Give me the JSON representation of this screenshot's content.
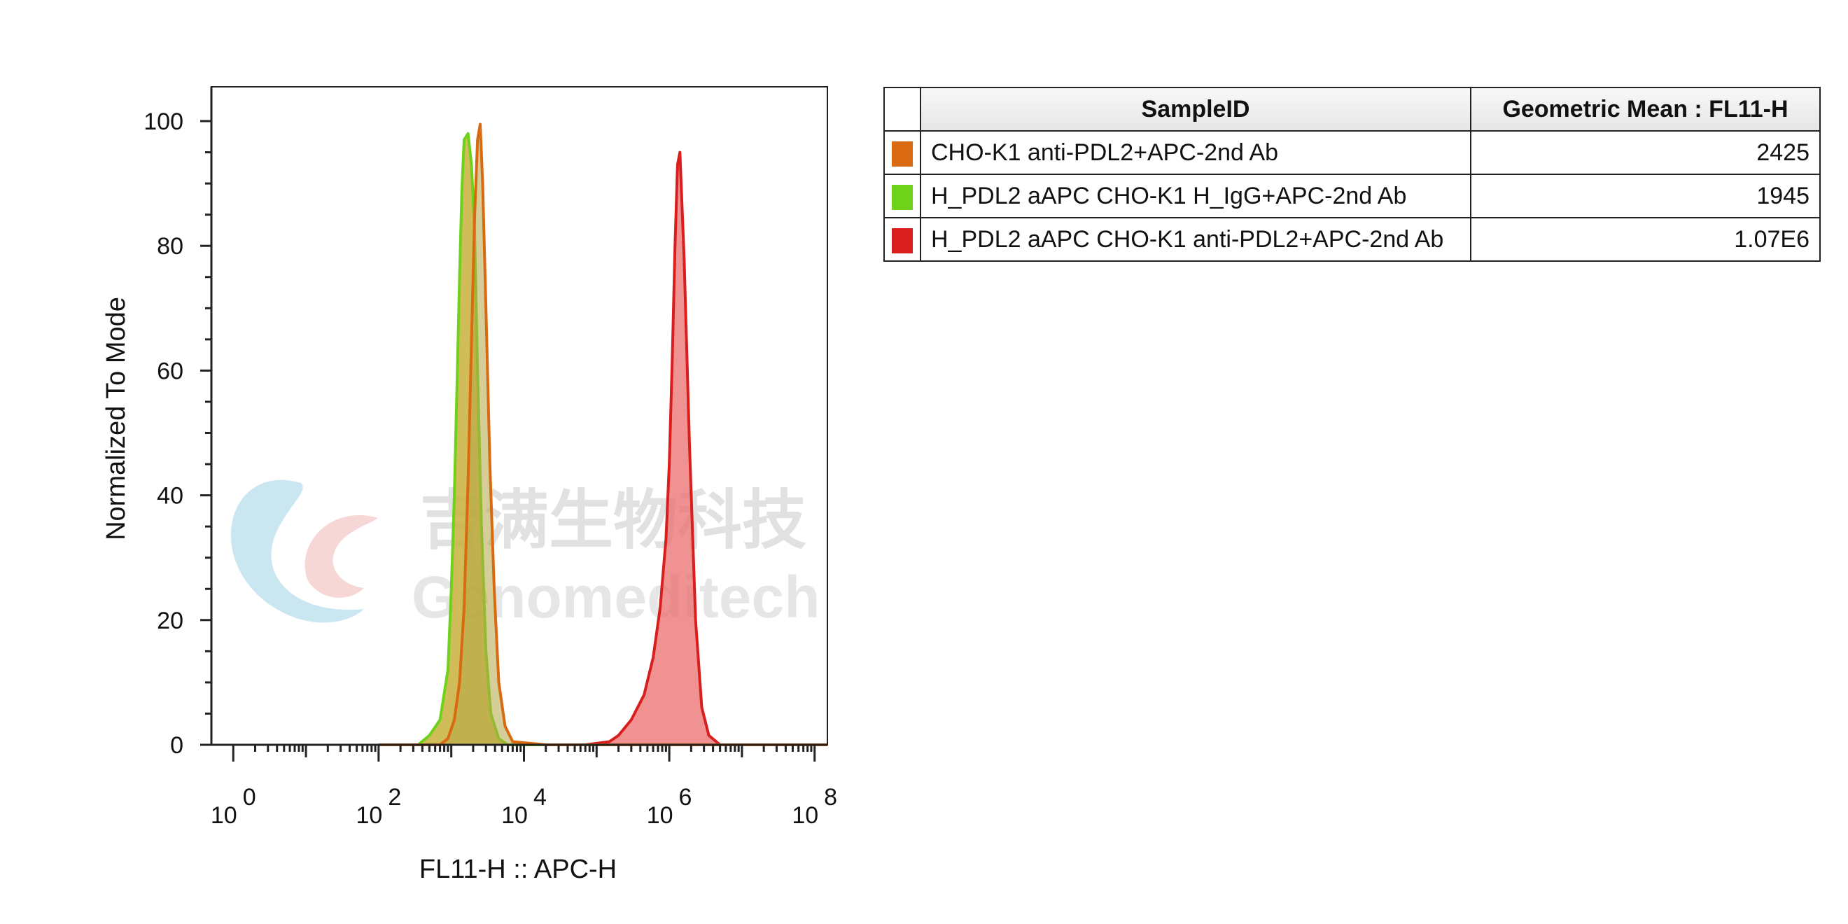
{
  "chart_data": {
    "type": "area",
    "xlabel": "FL11-H :: APC-H",
    "ylabel": "Normalized To Mode",
    "x_scale": "log",
    "xlim": [
      0.5,
      150000000.0
    ],
    "ylim": [
      0,
      105
    ],
    "y_ticks": [
      0,
      20,
      40,
      60,
      80,
      100
    ],
    "x_ticks": [
      {
        "base": "10",
        "exp": "0",
        "value": 1
      },
      {
        "base": "10",
        "exp": "2",
        "value": 100
      },
      {
        "base": "10",
        "exp": "4",
        "value": 10000
      },
      {
        "base": "10",
        "exp": "6",
        "value": 1000000
      },
      {
        "base": "10",
        "exp": "8",
        "value": 100000000
      }
    ],
    "grid": false,
    "series": [
      {
        "name": "H_PDL2 aAPC CHO-K1 H_IgG+APC-2nd Ab",
        "color": "#6FD21A",
        "fill": "rgba(200,176,60,0.85)",
        "x": [
          100,
          350,
          500,
          700,
          900,
          1000,
          1100,
          1200,
          1300,
          1400,
          1500,
          1700,
          1900,
          2100,
          2300,
          2600,
          3000,
          3500,
          4500,
          6000,
          20000
        ],
        "y": [
          0,
          0,
          1.5,
          4,
          12,
          25,
          40,
          58,
          75,
          89,
          97,
          98,
          93,
          82,
          60,
          35,
          15,
          5,
          1,
          0,
          0
        ]
      },
      {
        "name": "H_PDL2 aAPC CHO-K1 anti-PDL2+APC-2nd Ab",
        "color": "#D91E1E",
        "fill": "rgba(235,110,110,0.75)",
        "x": [
          30000,
          70000,
          150000,
          200000,
          300000,
          450000,
          600000,
          750000,
          900000,
          1000000,
          1100000,
          1200000,
          1300000,
          1400000,
          1600000,
          1900000,
          2300000,
          2800000,
          3500000,
          5000000,
          30000000
        ],
        "y": [
          0,
          0,
          0.5,
          1.5,
          4,
          8,
          14,
          22,
          33,
          45,
          62,
          80,
          93,
          95,
          78,
          48,
          20,
          6,
          1.5,
          0,
          0
        ]
      },
      {
        "name": "CHO-K1 anti-PDL2+APC-2nd Ab",
        "color": "#D96A12",
        "fill": "rgba(180,165,70,0.55)",
        "x": [
          100,
          700,
          900,
          1100,
          1300,
          1500,
          1700,
          1900,
          2100,
          2300,
          2500,
          2700,
          3000,
          3400,
          3900,
          4500,
          5500,
          7000,
          20000,
          150000000
        ],
        "y": [
          0,
          0,
          1,
          4,
          10,
          22,
          42,
          65,
          85,
          97,
          99.5,
          90,
          70,
          45,
          25,
          10,
          3,
          0.5,
          0,
          0
        ]
      }
    ]
  },
  "watermark": {
    "brand_cn": "吉满生物科技",
    "brand_en": "Genomeditech"
  },
  "legend_table": {
    "headers": {
      "sample": "SampleID",
      "mean": "Geometric Mean : FL11-H"
    },
    "rows": [
      {
        "color": "#D96A12",
        "sample": "CHO-K1 anti-PDL2+APC-2nd Ab",
        "mean": "2425"
      },
      {
        "color": "#6FD21A",
        "sample": "H_PDL2 aAPC CHO-K1 H_IgG+APC-2nd Ab",
        "mean": "1945"
      },
      {
        "color": "#D91E1E",
        "sample": "H_PDL2 aAPC CHO-K1 anti-PDL2+APC-2nd Ab",
        "mean": "1.07E6"
      }
    ]
  }
}
